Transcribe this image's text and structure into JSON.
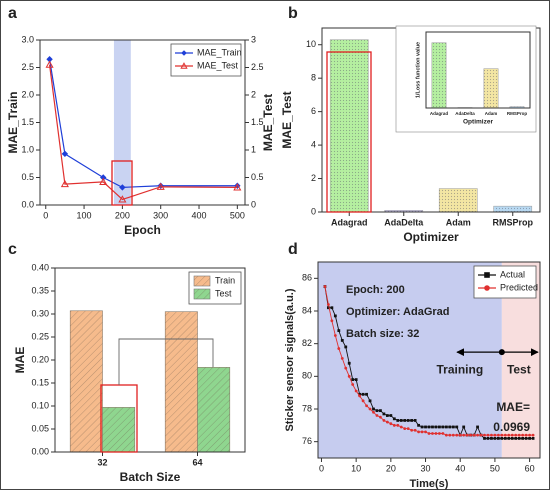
{
  "chart_data": [
    {
      "type": "line",
      "panel_label": "a",
      "xlabel": "Epoch",
      "ylabel": "MAE_Train",
      "y2label": "MAE_Test",
      "x": [
        10,
        50,
        150,
        200,
        300,
        500
      ],
      "xlim": [
        -15,
        520
      ],
      "xticks": [
        0,
        100,
        200,
        300,
        400,
        500
      ],
      "ylim": [
        0,
        3
      ],
      "yticks": [
        {
          "value": 0,
          "label": "0.0"
        },
        0.5,
        {
          "value": 1,
          "label": "1.0"
        },
        1.5,
        {
          "value": 2,
          "label": "2.0"
        },
        2.5,
        {
          "value": 3,
          "label": "3.0"
        }
      ],
      "y2lim": [
        0,
        3
      ],
      "y2ticks": [
        0,
        0.5,
        1,
        1.5,
        2,
        2.5,
        3
      ],
      "highlight_xlim": [
        178,
        222
      ],
      "legend": "upper right",
      "series": [
        {
          "name": "MAE_Train",
          "color": "#1f3fd8",
          "marker": "diamond",
          "values": [
            2.65,
            0.93,
            0.5,
            0.32,
            0.35,
            0.35
          ]
        },
        {
          "name": "MAE_Test",
          "color": "#e0302f",
          "marker": "triangle",
          "axis": "y2",
          "values": [
            2.55,
            0.38,
            0.42,
            0.1,
            0.33,
            0.32
          ]
        }
      ]
    },
    {
      "type": "bar",
      "panel_label": "b",
      "xlabel": "Optimizer",
      "ylabel": "MAE_Test",
      "categories": [
        "Adagrad",
        "AdaDelta",
        "Adam",
        "RMSProp"
      ],
      "values": [
        10.3,
        0.1,
        1.4,
        0.35
      ],
      "colors": [
        "#b5efa0",
        "#cdc6f0",
        "#f3e6a3",
        "#b8d9f2"
      ],
      "ylim": [
        0,
        11
      ],
      "yticks": [
        0,
        2,
        4,
        6,
        8,
        10
      ],
      "inset": {
        "type": "bar",
        "xlabel": "Optimizer",
        "ylabel": "1/Loss function value",
        "categories": [
          "Adagrad",
          "AdaDelta",
          "Adam",
          "RMSProp"
        ],
        "values": [
          7.3,
          0.05,
          4.4,
          0.15
        ],
        "colors": [
          "#b5efa0",
          "#cdc6f0",
          "#f3e6a3",
          "#b8d9f2"
        ],
        "ylim": [
          0,
          8.5
        ]
      }
    },
    {
      "type": "bar",
      "panel_label": "c",
      "xlabel": "Batch Size",
      "ylabel": "MAE",
      "categories": [
        "32",
        "64"
      ],
      "ylim": [
        0,
        0.4
      ],
      "yticks": [
        {
          "value": 0,
          "label": "0.00"
        },
        0.05,
        {
          "value": 0.1,
          "label": "0.10"
        },
        0.15,
        {
          "value": 0.2,
          "label": "0.20"
        },
        0.25,
        {
          "value": 0.3,
          "label": "0.30"
        },
        0.35,
        {
          "value": 0.4,
          "label": "0.40"
        }
      ],
      "legend": "upper right",
      "series": [
        {
          "name": "Train",
          "color": "#f6bb8c",
          "values": [
            0.307,
            0.305
          ]
        },
        {
          "name": "Test",
          "color": "#8fd68f",
          "values": [
            0.097,
            0.184
          ]
        }
      ]
    },
    {
      "type": "line",
      "panel_label": "d",
      "xlabel": "Time(s)",
      "ylabel": "Sticker sensor signals(a.u.)",
      "x": [
        1,
        2,
        3,
        4,
        5,
        6,
        7,
        8,
        9,
        10,
        11,
        12,
        13,
        14,
        15,
        16,
        17,
        18,
        19,
        20,
        21,
        22,
        23,
        24,
        25,
        26,
        27,
        28,
        29,
        30,
        31,
        32,
        33,
        34,
        35,
        36,
        37,
        38,
        39,
        40,
        41,
        42,
        43,
        44,
        45,
        46,
        47,
        48,
        49,
        50,
        51,
        52,
        53,
        54,
        55,
        56,
        57,
        58,
        59,
        60,
        61
      ],
      "xlim": [
        -1,
        63
      ],
      "xticks": [
        0,
        10,
        20,
        30,
        40,
        50,
        60
      ],
      "ylim": [
        75,
        87
      ],
      "yticks": [
        76,
        78,
        80,
        82,
        84,
        86
      ],
      "split_x": 52,
      "legend": "upper right",
      "annotations": [
        "Epoch: 200",
        "Optimizer: AdaGrad",
        "Batch size: 32"
      ],
      "region_labels": [
        "Training",
        "Test"
      ],
      "result_label": [
        "MAE=",
        "0.0969"
      ],
      "series": [
        {
          "name": "Actual",
          "color": "#111111",
          "marker": "square",
          "values": [
            85.5,
            84.2,
            84.2,
            83.7,
            82.8,
            82.2,
            81.8,
            80.8,
            79.8,
            79.8,
            78.9,
            78.9,
            78.9,
            78.5,
            78.0,
            77.9,
            77.9,
            77.7,
            77.6,
            77.6,
            77.4,
            77.3,
            77.3,
            77.3,
            77.3,
            77.3,
            77.3,
            77.0,
            76.9,
            76.9,
            76.9,
            76.9,
            76.9,
            76.9,
            76.9,
            76.9,
            76.9,
            76.9,
            76.9,
            76.4,
            76.9,
            76.4,
            76.4,
            76.4,
            76.9,
            76.4,
            76.2,
            76.2,
            76.2,
            76.2,
            76.2,
            76.2,
            76.2,
            76.2,
            76.2,
            76.2,
            76.2,
            76.2,
            76.2,
            76.2,
            76.2
          ]
        },
        {
          "name": "Predicted",
          "color": "#e0302f",
          "marker": "circle",
          "values": [
            85.5,
            84.4,
            83.4,
            82.5,
            81.7,
            81.1,
            80.5,
            80.0,
            79.5,
            79.1,
            78.8,
            78.5,
            78.2,
            78.0,
            77.8,
            77.6,
            77.5,
            77.3,
            77.2,
            77.1,
            77.0,
            77.0,
            76.9,
            76.8,
            76.8,
            76.7,
            76.7,
            76.6,
            76.6,
            76.6,
            76.5,
            76.5,
            76.5,
            76.5,
            76.5,
            76.4,
            76.4,
            76.4,
            76.4,
            76.4,
            76.4,
            76.4,
            76.4,
            76.4,
            76.4,
            76.4,
            76.4,
            76.4,
            76.4,
            76.4,
            76.4,
            76.4,
            76.4,
            76.4,
            76.4,
            76.4,
            76.4,
            76.4,
            76.4,
            76.4,
            76.4
          ]
        }
      ]
    }
  ]
}
